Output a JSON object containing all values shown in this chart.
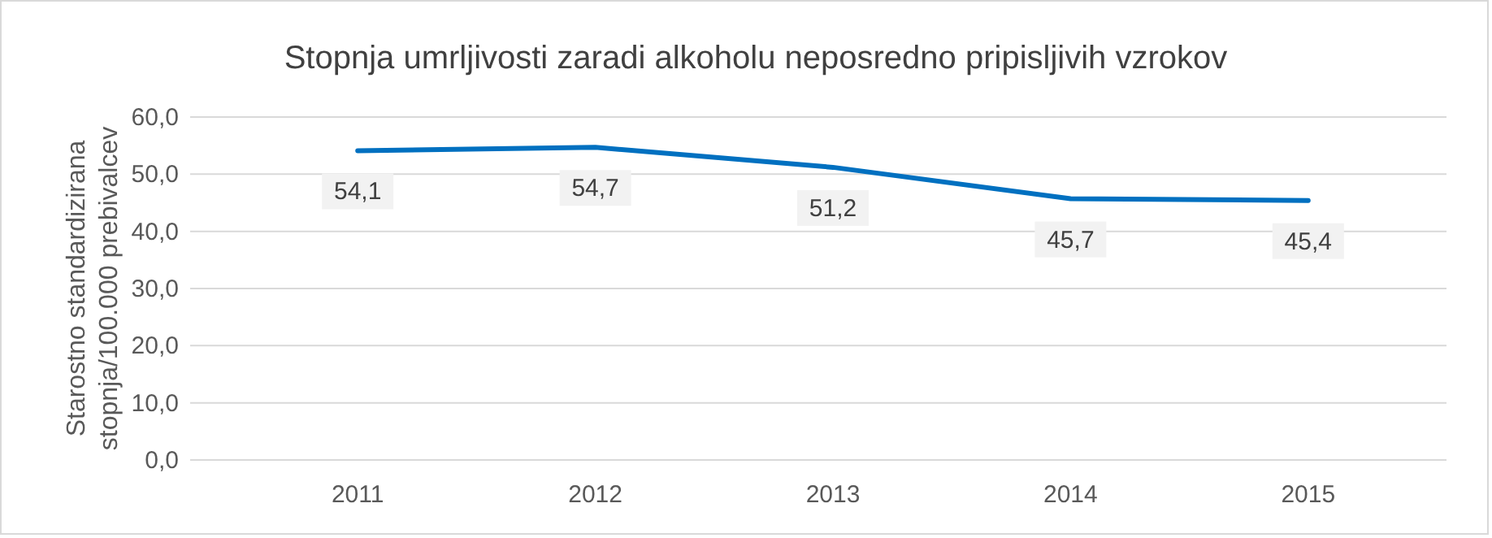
{
  "chart_data": {
    "type": "line",
    "title": "Stopnja umrljivosti zaradi alkoholu neposredno pripisljivih vzrokov",
    "ylabel": "Starostno standardizirana stopnja/100.000 prebivalcev",
    "categories": [
      "2011",
      "2012",
      "2013",
      "2014",
      "2015"
    ],
    "series": [
      {
        "color": "#0070c0",
        "values": [
          54.1,
          54.7,
          51.2,
          45.7,
          45.4
        ],
        "value_labels": [
          "54,1",
          "54,7",
          "51,2",
          "45,7",
          "45,4"
        ]
      }
    ],
    "ylim": [
      0,
      60
    ],
    "yticks": [
      {
        "value": 0,
        "label": "0,0"
      },
      {
        "value": 10,
        "label": "10,0"
      },
      {
        "value": 20,
        "label": "20,0"
      },
      {
        "value": 30,
        "label": "30,0"
      },
      {
        "value": 40,
        "label": "40,0"
      },
      {
        "value": 50,
        "label": "50,0"
      },
      {
        "value": 60,
        "label": "60,0"
      }
    ],
    "grid": "y",
    "marker": "none",
    "line_style": "solid"
  }
}
